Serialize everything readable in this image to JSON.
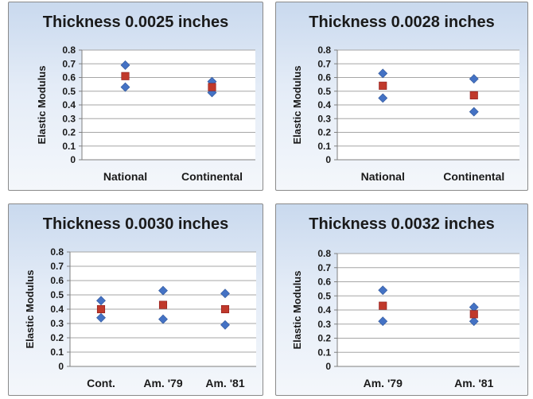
{
  "chart_data": [
    {
      "type": "scatter",
      "title": "Thickness 0.0025 inches",
      "ylabel": "Elastic Modulus",
      "xlabel": "",
      "categories": [
        "National",
        "Continental"
      ],
      "ylim": [
        0,
        0.8
      ],
      "yticks": [
        "0",
        "0.1",
        "0.2",
        "0.3",
        "0.4",
        "0.5",
        "0.6",
        "0.7",
        "0.8"
      ],
      "grid": true,
      "series": [
        {
          "marker": "diamond",
          "color": "#4472c4",
          "values": [
            [
              0.69,
              0.53
            ],
            [
              0.57,
              0.49
            ]
          ]
        },
        {
          "marker": "square",
          "color": "#c0392b",
          "values": [
            0.61,
            0.53
          ]
        }
      ]
    },
    {
      "type": "scatter",
      "title": "Thickness 0.0028 inches",
      "ylabel": "Elastic Modulus",
      "xlabel": "",
      "categories": [
        "National",
        "Continental"
      ],
      "ylim": [
        0,
        0.8
      ],
      "yticks": [
        "0",
        "0.1",
        "0.2",
        "0.3",
        "0.4",
        "0.5",
        "0.6",
        "0.7",
        "0.8"
      ],
      "grid": true,
      "series": [
        {
          "marker": "diamond",
          "color": "#4472c4",
          "values": [
            [
              0.63,
              0.45
            ],
            [
              0.59,
              0.35
            ]
          ]
        },
        {
          "marker": "square",
          "color": "#c0392b",
          "values": [
            0.54,
            0.47
          ]
        }
      ]
    },
    {
      "type": "scatter",
      "title": "Thickness 0.0030 inches",
      "ylabel": "Elastic Modulus",
      "xlabel": "",
      "categories": [
        "Cont.",
        "Am. '79",
        "Am. '81"
      ],
      "ylim": [
        0,
        0.8
      ],
      "yticks": [
        "0",
        "0.1",
        "0.2",
        "0.3",
        "0.4",
        "0.5",
        "0.6",
        "0.7",
        "0.8"
      ],
      "grid": true,
      "series": [
        {
          "marker": "diamond",
          "color": "#4472c4",
          "values": [
            [
              0.46,
              0.34
            ],
            [
              0.53,
              0.33
            ],
            [
              0.51,
              0.29
            ]
          ]
        },
        {
          "marker": "square",
          "color": "#c0392b",
          "values": [
            0.4,
            0.43,
            0.4
          ]
        }
      ]
    },
    {
      "type": "scatter",
      "title": "Thickness 0.0032 inches",
      "ylabel": "Elastic Modulus",
      "xlabel": "",
      "categories": [
        "Am. '79",
        "Am. '81"
      ],
      "ylim": [
        0,
        0.8
      ],
      "yticks": [
        "0",
        "0.1",
        "0.2",
        "0.3",
        "0.4",
        "0.5",
        "0.6",
        "0.7",
        "0.8"
      ],
      "grid": true,
      "series": [
        {
          "marker": "diamond",
          "color": "#4472c4",
          "values": [
            [
              0.54,
              0.32
            ],
            [
              0.42,
              0.32
            ]
          ]
        },
        {
          "marker": "square",
          "color": "#c0392b",
          "values": [
            0.43,
            0.37
          ]
        }
      ]
    }
  ]
}
